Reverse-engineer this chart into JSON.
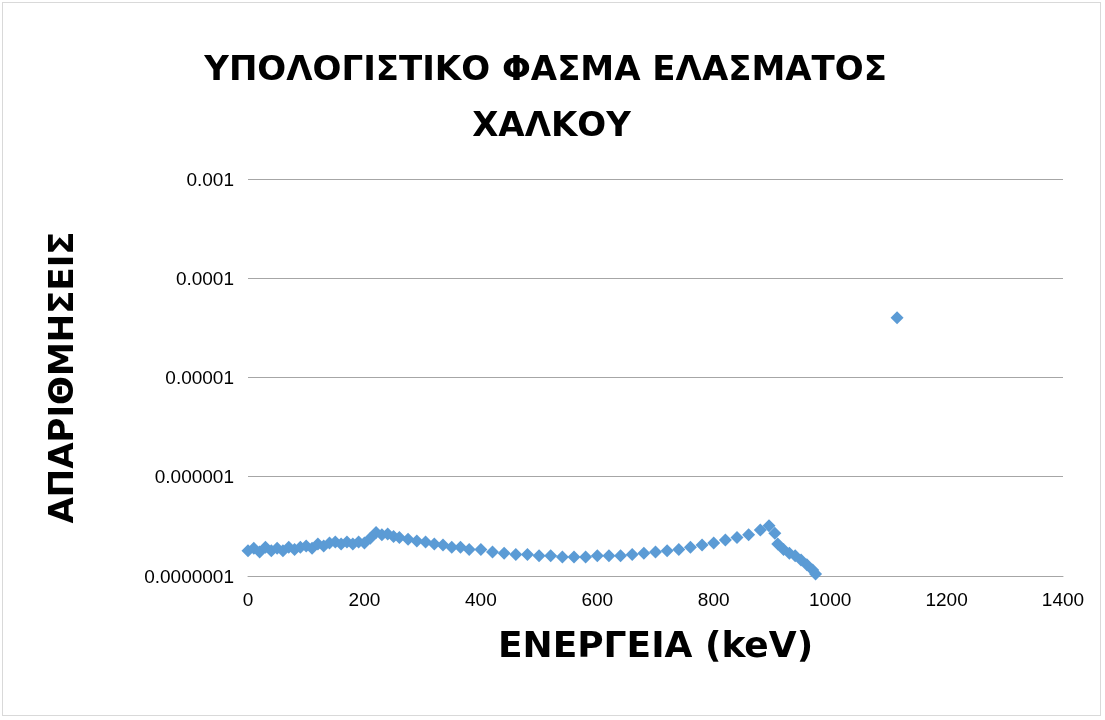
{
  "chart_data": {
    "type": "scatter",
    "title": "ΥΠΟΛΟΓΙΣΤΙΚΟ ΦΑΣΜΑ ΕΛΑΣΜΑΤΟΣ ΧΑΛΚΟΥ",
    "xlabel": "ΕΝΕΡΓΕΙΑ (keV)",
    "ylabel": "ΑΠΑΡΙΘΜΗΣΕΙΣ",
    "x": [
      0,
      10,
      20,
      30,
      40,
      50,
      60,
      70,
      80,
      90,
      100,
      110,
      120,
      130,
      140,
      150,
      160,
      170,
      180,
      190,
      200,
      210,
      220,
      230,
      240,
      250,
      260,
      275,
      290,
      305,
      320,
      335,
      350,
      365,
      380,
      400,
      420,
      440,
      460,
      480,
      500,
      520,
      540,
      560,
      580,
      600,
      620,
      640,
      660,
      680,
      700,
      720,
      740,
      760,
      780,
      800,
      820,
      840,
      860,
      880,
      895,
      905,
      910,
      920,
      930,
      940,
      950,
      960,
      970,
      975,
      1115
    ],
    "series": [
      {
        "color": "#5b9bd5",
        "values": [
          1.8e-07,
          1.9e-07,
          1.75e-07,
          1.95e-07,
          1.8e-07,
          1.9e-07,
          1.8e-07,
          1.95e-07,
          1.85e-07,
          1.95e-07,
          2e-07,
          1.9e-07,
          2.1e-07,
          2e-07,
          2.15e-07,
          2.2e-07,
          2.1e-07,
          2.2e-07,
          2.1e-07,
          2.2e-07,
          2.15e-07,
          2.4e-07,
          2.75e-07,
          2.6e-07,
          2.65e-07,
          2.5e-07,
          2.45e-07,
          2.35e-07,
          2.25e-07,
          2.2e-07,
          2.1e-07,
          2.05e-07,
          1.95e-07,
          1.95e-07,
          1.85e-07,
          1.85e-07,
          1.75e-07,
          1.7e-07,
          1.65e-07,
          1.65e-07,
          1.6e-07,
          1.6e-07,
          1.55e-07,
          1.55e-07,
          1.55e-07,
          1.6e-07,
          1.6e-07,
          1.6e-07,
          1.65e-07,
          1.7e-07,
          1.75e-07,
          1.8e-07,
          1.85e-07,
          1.95e-07,
          2.05e-07,
          2.15e-07,
          2.3e-07,
          2.45e-07,
          2.6e-07,
          2.9e-07,
          3.2e-07,
          2.7e-07,
          2.1e-07,
          1.85e-07,
          1.7e-07,
          1.6e-07,
          1.45e-07,
          1.3e-07,
          1.15e-07,
          1.05e-07,
          4e-05
        ]
      }
    ],
    "xlim": [
      0,
      1400
    ],
    "xticks": [
      0,
      200,
      400,
      600,
      800,
      1000,
      1200,
      1400
    ],
    "ylim": [
      1e-07,
      0.001
    ],
    "yticks": [
      {
        "value": 1e-07,
        "label": "0.0000001"
      },
      {
        "value": 1e-06,
        "label": "0.000001"
      },
      {
        "value": 1e-05,
        "label": "0.00001"
      },
      0.0001,
      0.001
    ],
    "log": "y",
    "grid": "y",
    "marker": "diamond"
  }
}
